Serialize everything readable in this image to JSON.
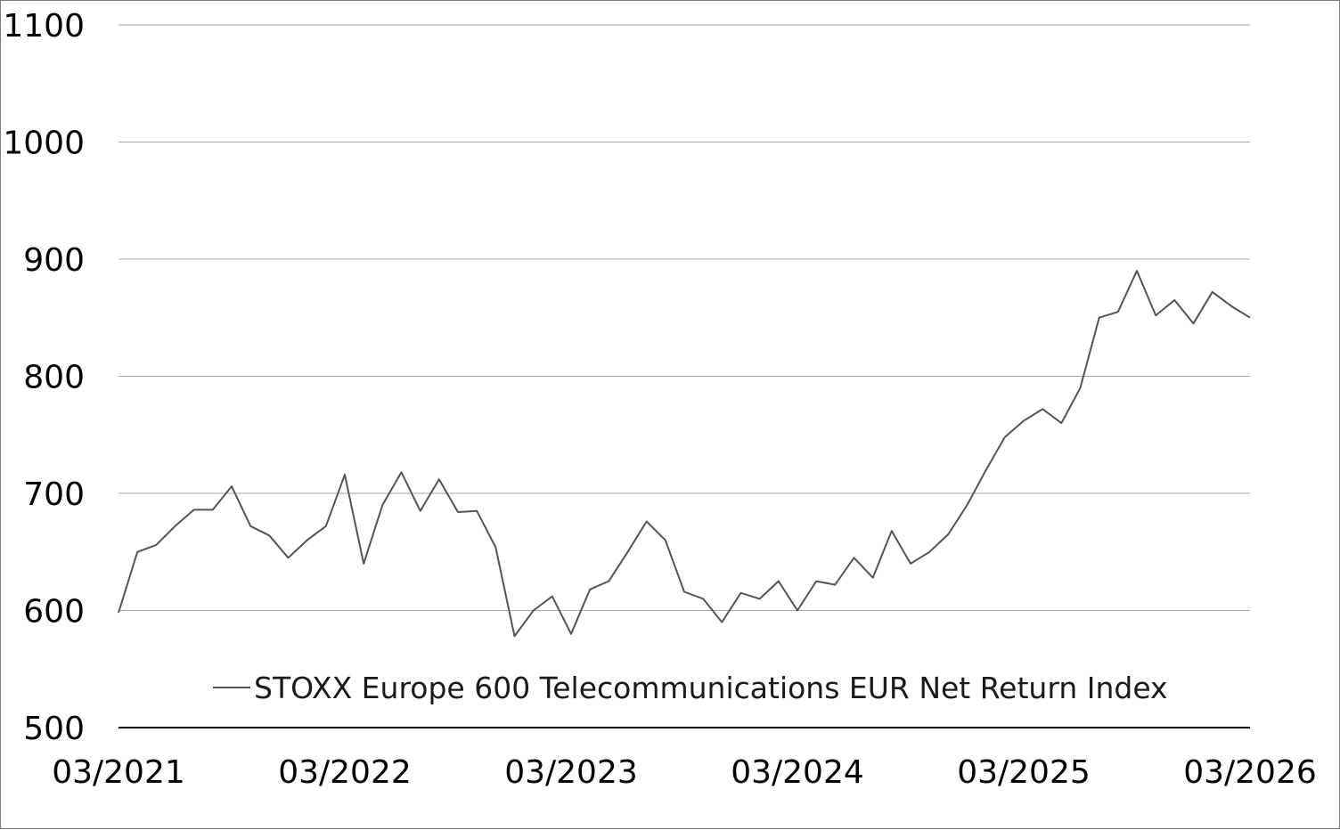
{
  "chart_data": {
    "type": "line",
    "title": "",
    "xlabel": "",
    "ylabel": "",
    "ylim": [
      500,
      1100
    ],
    "y_ticks": [
      "500",
      "600",
      "700",
      "800",
      "900",
      "1000",
      "1100"
    ],
    "x_ticks": [
      "03/2021",
      "03/2022",
      "03/2023",
      "03/2024",
      "03/2025",
      "03/2026"
    ],
    "xlim": [
      "2021-03",
      "2026-03"
    ],
    "grid": "horizontal",
    "legend_position": "bottom-center",
    "colors": {
      "line": "#5a534b",
      "grid": "#a6a6a6",
      "baseline": "#000000"
    },
    "series": [
      {
        "name": "STOXX Europe 600 Telecommunications EUR Net Return Index",
        "x": [
          "2021-03",
          "2021-04",
          "2021-05",
          "2021-06",
          "2021-07",
          "2021-08",
          "2021-09",
          "2021-10",
          "2021-11",
          "2021-12",
          "2022-01",
          "2022-02",
          "2022-03",
          "2022-04",
          "2022-05",
          "2022-06",
          "2022-07",
          "2022-08",
          "2022-09",
          "2022-10",
          "2022-11",
          "2022-12",
          "2023-01",
          "2023-02",
          "2023-03",
          "2023-04",
          "2023-05",
          "2023-06",
          "2023-07",
          "2023-08",
          "2023-09",
          "2023-10",
          "2023-11",
          "2023-12",
          "2024-01",
          "2024-02",
          "2024-03",
          "2024-04",
          "2024-05",
          "2024-06",
          "2024-07",
          "2024-08",
          "2024-09",
          "2024-10",
          "2024-11",
          "2024-12",
          "2025-01",
          "2025-02",
          "2025-03",
          "2025-04",
          "2025-05",
          "2025-06",
          "2025-07",
          "2025-08",
          "2025-09",
          "2025-10",
          "2025-11",
          "2025-12",
          "2026-01",
          "2026-02",
          "2026-03"
        ],
        "values": [
          598,
          650,
          656,
          672,
          686,
          686,
          706,
          672,
          664,
          645,
          660,
          672,
          716,
          640,
          690,
          718,
          685,
          712,
          684,
          685,
          654,
          578,
          600,
          612,
          580,
          618,
          625,
          650,
          676,
          660,
          616,
          610,
          590,
          615,
          610,
          625,
          600,
          625,
          622,
          645,
          628,
          668,
          640,
          650,
          665,
          690,
          720,
          748,
          762,
          772,
          760,
          790,
          850,
          855,
          890,
          852,
          865,
          845,
          872,
          860,
          850
        ]
      }
    ]
  }
}
